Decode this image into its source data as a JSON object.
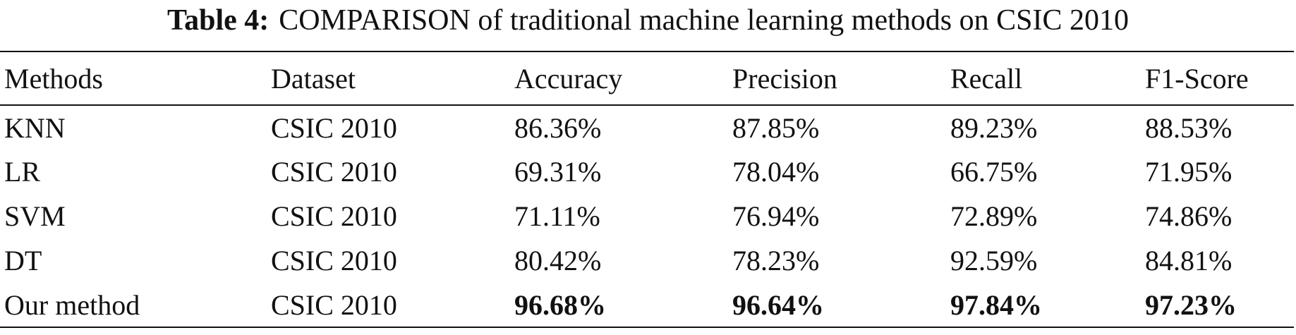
{
  "caption": {
    "label": "Table 4:",
    "text": "COMPARISON of traditional machine learning methods on CSIC 2010"
  },
  "table": {
    "header": [
      "Methods",
      "Dataset",
      "Accuracy",
      "Precision",
      "Recall",
      "F1-Score"
    ],
    "rows": [
      [
        "KNN",
        "CSIC 2010",
        "86.36%",
        "87.85%",
        "89.23%",
        "88.53%"
      ],
      [
        "LR",
        "CSIC 2010",
        "69.31%",
        "78.04%",
        "66.75%",
        "71.95%"
      ],
      [
        "SVM",
        "CSIC 2010",
        "71.11%",
        "76.94%",
        "72.89%",
        "74.86%"
      ],
      [
        "DT",
        "CSIC 2010",
        "80.42%",
        "78.23%",
        "92.59%",
        "84.81%"
      ],
      [
        "Our method",
        "CSIC 2010",
        "96.68%",
        "96.64%",
        "97.84%",
        "97.23%"
      ]
    ]
  }
}
